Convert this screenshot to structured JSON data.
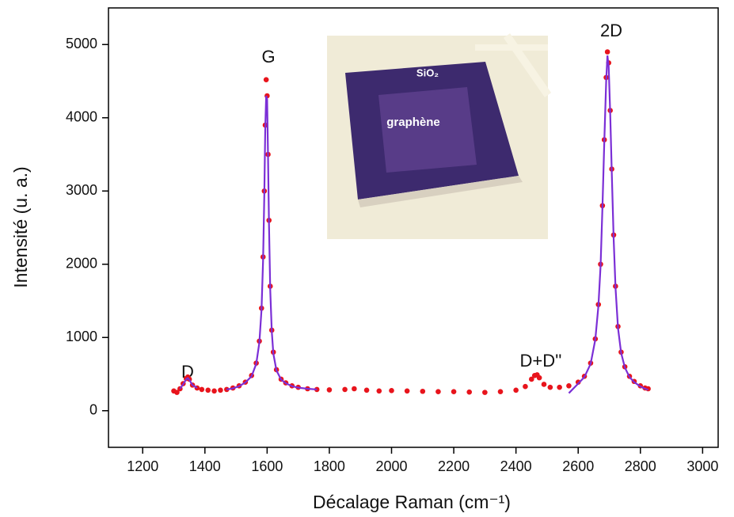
{
  "chart_data": {
    "type": "scatter",
    "xlabel": "Décalage Raman (cm⁻¹)",
    "ylabel": "Intensité (u. a.)",
    "annotations": [
      "D",
      "G",
      "D+D''",
      "2D"
    ],
    "inset_labels": [
      "SiO₂",
      "graphène"
    ],
    "xlim": [
      1090,
      3050
    ],
    "ylim": [
      -500,
      5500
    ],
    "xticks": [
      1200,
      1400,
      1600,
      1800,
      2000,
      2200,
      2400,
      2600,
      2800,
      3000
    ],
    "yticks": [
      0,
      1000,
      2000,
      3000,
      4000,
      5000
    ],
    "x": [
      1300,
      1310,
      1320,
      1330,
      1340,
      1345,
      1350,
      1360,
      1375,
      1390,
      1410,
      1430,
      1450,
      1470,
      1490,
      1510,
      1530,
      1550,
      1565,
      1575,
      1582,
      1587,
      1591,
      1594,
      1597,
      1600,
      1603,
      1606,
      1610,
      1615,
      1620,
      1630,
      1645,
      1660,
      1680,
      1700,
      1730,
      1760,
      1800,
      1850,
      1880,
      1920,
      1960,
      2000,
      2050,
      2100,
      2150,
      2200,
      2250,
      2300,
      2350,
      2400,
      2430,
      2450,
      2460,
      2468,
      2475,
      2490,
      2510,
      2540,
      2570,
      2600,
      2620,
      2640,
      2655,
      2665,
      2672,
      2678,
      2684,
      2690,
      2694,
      2698,
      2703,
      2708,
      2714,
      2720,
      2728,
      2738,
      2750,
      2765,
      2780,
      2800,
      2815,
      2825
    ],
    "series": [
      {
        "color": "#e8141c",
        "mode": "markers",
        "values": [
          270,
          250,
          300,
          370,
          440,
          460,
          430,
          350,
          310,
          290,
          280,
          270,
          280,
          290,
          310,
          340,
          390,
          480,
          650,
          950,
          1400,
          2100,
          3000,
          3900,
          4520,
          4300,
          3500,
          2600,
          1700,
          1100,
          800,
          560,
          430,
          380,
          340,
          320,
          300,
          290,
          285,
          290,
          300,
          280,
          270,
          275,
          270,
          265,
          260,
          260,
          255,
          250,
          260,
          280,
          330,
          430,
          480,
          490,
          450,
          360,
          320,
          320,
          340,
          390,
          470,
          650,
          980,
          1450,
          2000,
          2800,
          3700,
          4550,
          4900,
          4750,
          4100,
          3300,
          2400,
          1700,
          1150,
          800,
          600,
          470,
          400,
          340,
          310,
          300
        ]
      },
      {
        "color": "#7b2fd6",
        "mode": "line",
        "values": [
          null,
          null,
          300,
          360,
          430,
          445,
          420,
          350,
          310,
          null,
          null,
          null,
          null,
          290,
          305,
          335,
          385,
          470,
          640,
          930,
          1380,
          2050,
          2950,
          3850,
          4300,
          4250,
          3450,
          2550,
          1650,
          1080,
          780,
          550,
          425,
          375,
          335,
          315,
          300,
          290,
          null,
          null,
          null,
          null,
          null,
          null,
          null,
          null,
          null,
          null,
          null,
          null,
          null,
          null,
          null,
          null,
          null,
          null,
          null,
          null,
          null,
          null,
          240,
          370,
          460,
          640,
          970,
          1430,
          1980,
          2780,
          3680,
          4500,
          4850,
          4700,
          4050,
          3250,
          2350,
          1680,
          1130,
          790,
          590,
          460,
          390,
          330,
          300,
          285
        ]
      }
    ]
  }
}
